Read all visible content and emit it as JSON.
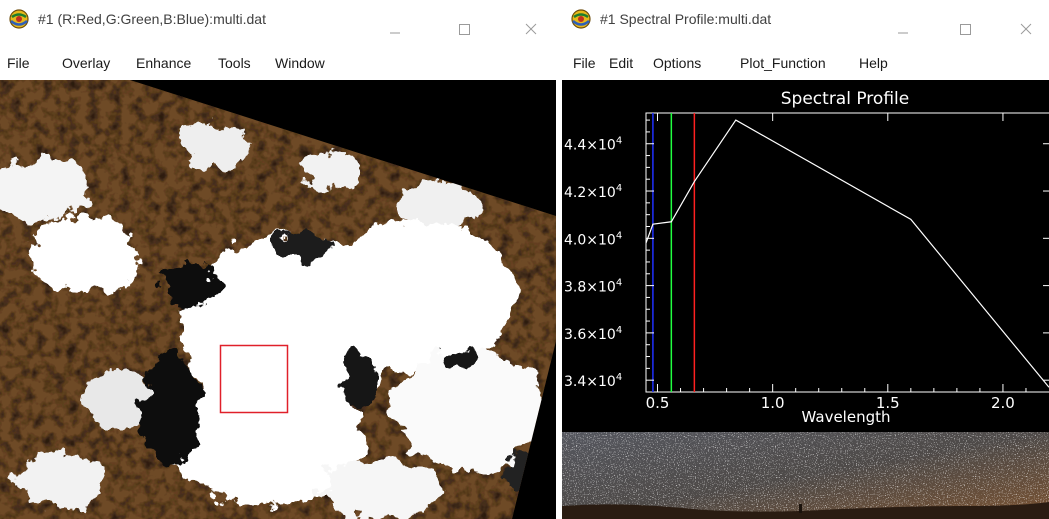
{
  "left_window": {
    "title": "#1 (R:Red,G:Green,B:Blue):multi.dat",
    "menu": [
      "File",
      "Overlay",
      "Enhance",
      "Tools",
      "Window"
    ]
  },
  "right_window": {
    "title": "#1 Spectral Profile:multi.dat",
    "menu": [
      "File",
      "Edit",
      "Options",
      "Plot_Function",
      "Help"
    ]
  },
  "colors": {
    "selection_box": "#e0202a",
    "profile_line": "#ffffff",
    "marker_blue": "#2030ff",
    "marker_green": "#20ff40",
    "marker_red": "#ff2020"
  },
  "chart_data": {
    "type": "line",
    "title": "Spectral Profile",
    "xlabel": "Wavelength",
    "ylabel": "",
    "xlim": [
      0.45,
      2.2
    ],
    "ylim": [
      33500,
      45300
    ],
    "x_ticks": [
      {
        "value": 0.5,
        "label": "0.5"
      },
      {
        "value": 1.0,
        "label": "1.0"
      },
      {
        "value": 1.5,
        "label": "1.5"
      },
      {
        "value": 2.0,
        "label": "2.0"
      }
    ],
    "y_ticks": [
      {
        "value": 34000,
        "mant": "3.4×10",
        "exp": "4"
      },
      {
        "value": 36000,
        "mant": "3.6×10",
        "exp": "4"
      },
      {
        "value": 38000,
        "mant": "3.8×10",
        "exp": "4"
      },
      {
        "value": 40000,
        "mant": "4.0×10",
        "exp": "4"
      },
      {
        "value": 42000,
        "mant": "4.2×10",
        "exp": "4"
      },
      {
        "value": 44000,
        "mant": "4.4×10",
        "exp": "4"
      }
    ],
    "series": [
      {
        "x": [
          0.45,
          0.48,
          0.56,
          0.66,
          0.84,
          1.6,
          2.2
        ],
        "y": [
          39800,
          40600,
          40700,
          42400,
          45000,
          40800,
          33700
        ]
      }
    ],
    "band_markers": [
      {
        "x": 0.48,
        "color": "#2030ff"
      },
      {
        "x": 0.56,
        "color": "#20ff40"
      },
      {
        "x": 0.66,
        "color": "#ff2020"
      }
    ]
  }
}
